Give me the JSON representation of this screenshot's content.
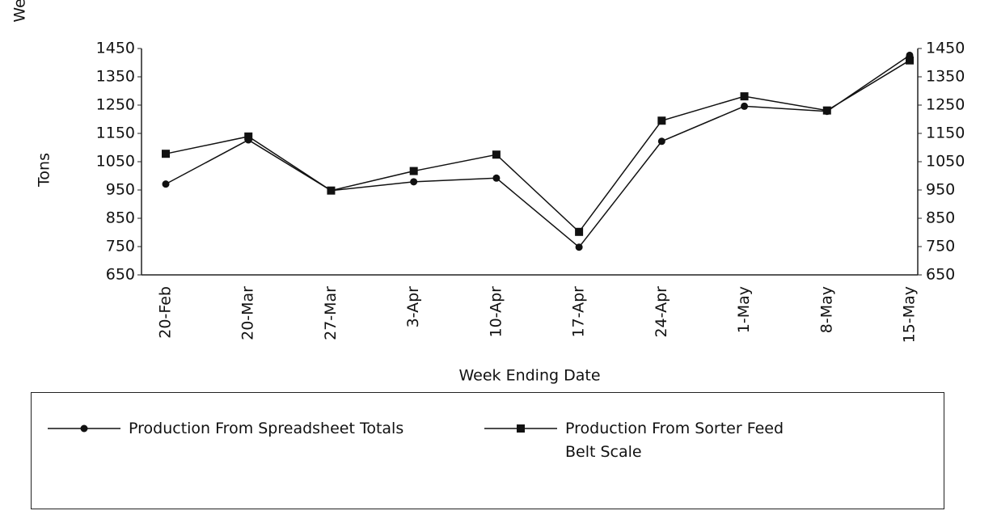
{
  "chart_data": {
    "type": "line",
    "ylabel": [
      "Wekly Production, Metric",
      "Tons"
    ],
    "xlabel": "Week Ending Date",
    "categories": [
      "20-Feb",
      "20-Mar",
      "27-Mar",
      "3-Apr",
      "10-Apr",
      "17-Apr",
      "24-Apr",
      "1-May",
      "8-May",
      "15-May"
    ],
    "series": [
      {
        "name": "Production From Spreadsheet Totals",
        "color": "#111111",
        "marker": "circle",
        "values": [
          971,
          1127,
          948,
          979,
          992,
          748,
          1122,
          1246,
          1228,
          1426
        ]
      },
      {
        "name": "Production From Sorter Feed Belt Scale",
        "color": "#111111",
        "marker": "square",
        "axis": "y2",
        "values": [
          1078,
          1139,
          948,
          1017,
          1075,
          802,
          1195,
          1281,
          1231,
          1408
        ]
      }
    ],
    "ylim": [
      650,
      1450
    ],
    "yticks": [
      650,
      750,
      850,
      950,
      1050,
      1150,
      1250,
      1350,
      1450
    ],
    "y2lim": [
      650,
      1450
    ],
    "y2ticks": [
      650,
      750,
      850,
      950,
      1050,
      1150,
      1250,
      1350,
      1450
    ]
  }
}
